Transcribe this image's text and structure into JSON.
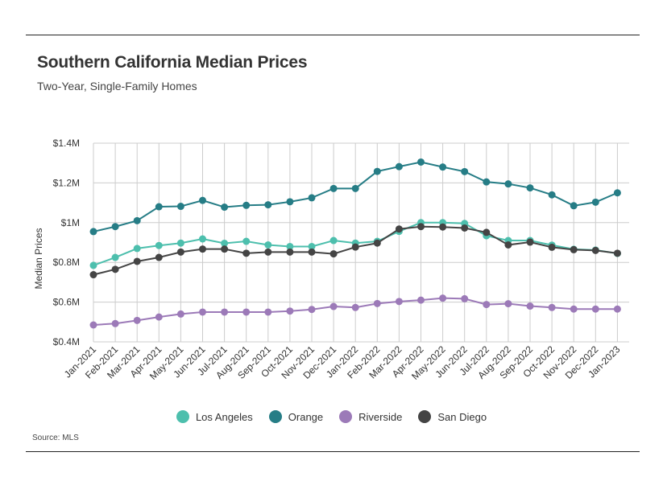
{
  "header": {
    "title": "Southern California Median Prices",
    "subtitle": "Two-Year, Single-Family Homes"
  },
  "footer": {
    "source": "Source: MLS"
  },
  "chart_data": {
    "type": "line",
    "title": "Southern California Median Prices",
    "subtitle": "Two-Year, Single-Family Homes",
    "xlabel": "",
    "ylabel": "Median Prices",
    "ylim": [
      0.4,
      1.4
    ],
    "yticks": [
      {
        "value": 0.4,
        "label": "$0.4M"
      },
      {
        "value": 0.6,
        "label": "$0.6M"
      },
      {
        "value": 0.8,
        "label": "$0.8M"
      },
      {
        "value": 1.0,
        "label": "$1M"
      },
      {
        "value": 1.2,
        "label": "$1.2M"
      },
      {
        "value": 1.4,
        "label": "$1.4M"
      }
    ],
    "grid": true,
    "legend_position": "bottom",
    "categories": [
      "Jan-2021",
      "Feb-2021",
      "Mar-2021",
      "Apr-2021",
      "May-2021",
      "Jun-2021",
      "Jul-2021",
      "Aug-2021",
      "Sep-2021",
      "Oct-2021",
      "Nov-2021",
      "Dec-2021",
      "Jan-2022",
      "Feb-2022",
      "Mar-2022",
      "Apr-2022",
      "May-2022",
      "Jun-2022",
      "Jul-2022",
      "Aug-2022",
      "Sep-2022",
      "Oct-2022",
      "Nov-2022",
      "Dec-2022",
      "Jan-2023"
    ],
    "series": [
      {
        "name": "Los Angeles",
        "color": "#4dbfad",
        "values": [
          0.785,
          0.825,
          0.87,
          0.885,
          0.897,
          0.918,
          0.896,
          0.906,
          0.888,
          0.88,
          0.88,
          0.91,
          0.897,
          0.906,
          0.956,
          1.0,
          1.0,
          0.996,
          0.934,
          0.91,
          0.91,
          0.887,
          0.866,
          0.862,
          0.845
        ]
      },
      {
        "name": "Orange",
        "color": "#267d86",
        "values": [
          0.955,
          0.98,
          1.01,
          1.08,
          1.082,
          1.112,
          1.078,
          1.087,
          1.09,
          1.105,
          1.125,
          1.172,
          1.172,
          1.258,
          1.282,
          1.305,
          1.28,
          1.257,
          1.205,
          1.195,
          1.175,
          1.14,
          1.085,
          1.103,
          1.15
        ]
      },
      {
        "name": "Riverside",
        "color": "#9c7ab8",
        "values": [
          0.485,
          0.492,
          0.508,
          0.525,
          0.54,
          0.55,
          0.55,
          0.55,
          0.55,
          0.555,
          0.563,
          0.578,
          0.573,
          0.593,
          0.603,
          0.61,
          0.62,
          0.617,
          0.588,
          0.592,
          0.58,
          0.573,
          0.565,
          0.565,
          0.565
        ]
      },
      {
        "name": "San Diego",
        "color": "#444444",
        "values": [
          0.738,
          0.765,
          0.805,
          0.825,
          0.852,
          0.867,
          0.867,
          0.846,
          0.852,
          0.852,
          0.852,
          0.843,
          0.877,
          0.897,
          0.968,
          0.98,
          0.978,
          0.973,
          0.951,
          0.888,
          0.902,
          0.876,
          0.864,
          0.86,
          0.846
        ]
      }
    ]
  }
}
